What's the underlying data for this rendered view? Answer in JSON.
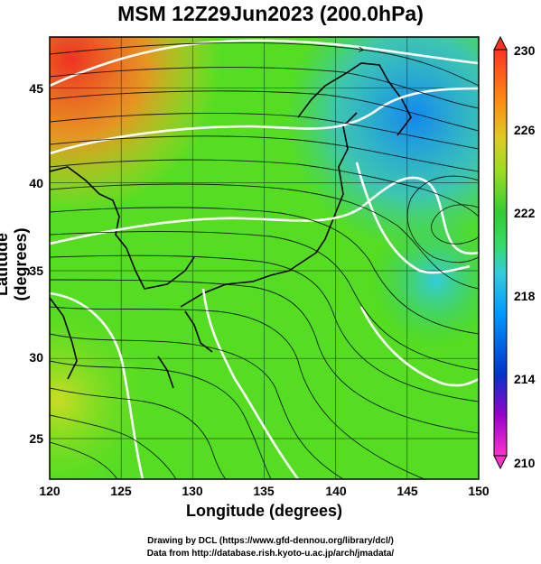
{
  "title": "MSM 12Z29Jun2023 (200.0hPa)",
  "x_axis": {
    "label": "Longitude (degrees)",
    "range": [
      120,
      150
    ],
    "ticks": [
      "120",
      "125",
      "130",
      "135",
      "140",
      "145",
      "150"
    ]
  },
  "y_axis": {
    "label": "Latitude  (degrees)",
    "range": [
      22.4,
      47.6
    ],
    "ticks": [
      "25",
      "30",
      "35",
      "40",
      "45"
    ]
  },
  "colorbar": {
    "ticks": [
      "230",
      "226",
      "222",
      "218",
      "214",
      "210"
    ],
    "range": [
      210,
      230
    ],
    "colors": [
      "#ff33cc",
      "#9900cc",
      "#0033cc",
      "#0099ff",
      "#33ccdd",
      "#33dd66",
      "#33cc33",
      "#99dd22",
      "#ddcc22",
      "#ff8811",
      "#ff3322"
    ]
  },
  "map": {
    "field": "temperature shading with wind streamlines",
    "contour_color": "#ffffff",
    "grid": true
  },
  "credit": {
    "line1": "Drawing by DCL (https://www.gfd-dennou.org/library/dcl/)",
    "line2": "Data from http://database.rish.kyoto-u.ac.jp/arch/jmadata/"
  }
}
